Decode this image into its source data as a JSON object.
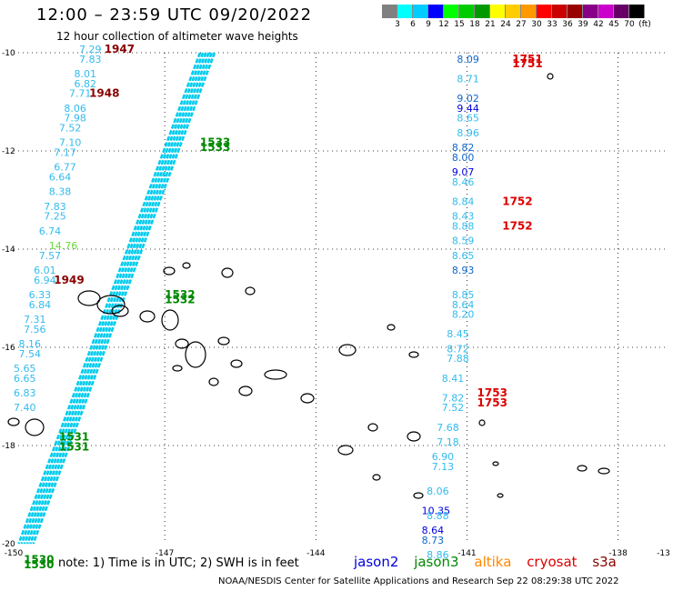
{
  "header": {
    "title": "12:00 – 23:59 UTC 09/20/2022",
    "subtitle": "12 hour collection of altimeter wave heights"
  },
  "colorbar": {
    "colors": [
      "#808080",
      "#00ffff",
      "#00ccff",
      "#0000ff",
      "#00ff00",
      "#00cc00",
      "#009900",
      "#ffff00",
      "#ffcc00",
      "#ff9900",
      "#ff0000",
      "#cc0000",
      "#990000",
      "#880088",
      "#cc00cc",
      "#660066",
      "#000000"
    ],
    "labels": [
      "3",
      "6",
      "9",
      "12",
      "15",
      "18",
      "21",
      "24",
      "27",
      "30",
      "33",
      "36",
      "39",
      "42",
      "45",
      "70",
      "(ft)"
    ]
  },
  "axes": {
    "x_ticks": [
      "-150",
      "-147",
      "-144",
      "-141",
      "-138",
      "-13"
    ],
    "y_ticks": [
      "-10",
      "-12",
      "-14",
      "-16",
      "-18",
      "-20"
    ]
  },
  "colors": {
    "swath": "#00ccee",
    "label_light": "#33bbee",
    "label_dark": "#1166cc",
    "jason2": "#0000dd",
    "jason3": "#008800",
    "altika": "#ff8800",
    "cryosat": "#dd0000",
    "s3a": "#880000",
    "mid_green": "#66dd33"
  },
  "chart_data": {
    "type": "scatter",
    "xlim": [
      -150,
      -137
    ],
    "ylim": [
      -20,
      -10
    ],
    "grid": "dotted",
    "wave_labels": [
      {
        "x": -148.7,
        "y": -10.0,
        "t": "7.29",
        "c": "label_light"
      },
      {
        "x": -148.7,
        "y": -10.2,
        "t": "7.83",
        "c": "label_light"
      },
      {
        "x": -148.8,
        "y": -10.5,
        "t": "8.01",
        "c": "label_light"
      },
      {
        "x": -148.8,
        "y": -10.7,
        "t": "6.82",
        "c": "label_light"
      },
      {
        "x": -148.9,
        "y": -10.9,
        "t": "7.71",
        "c": "label_light"
      },
      {
        "x": -149.0,
        "y": -11.2,
        "t": "8.06",
        "c": "label_light"
      },
      {
        "x": -149.0,
        "y": -11.4,
        "t": "7.98",
        "c": "label_light"
      },
      {
        "x": -149.1,
        "y": -11.6,
        "t": "7.52",
        "c": "label_light"
      },
      {
        "x": -149.1,
        "y": -11.9,
        "t": "7.10",
        "c": "label_light"
      },
      {
        "x": -149.2,
        "y": -12.1,
        "t": "7.17",
        "c": "label_light"
      },
      {
        "x": -149.2,
        "y": -12.4,
        "t": "6.77",
        "c": "label_light"
      },
      {
        "x": -149.3,
        "y": -12.6,
        "t": "6.64",
        "c": "label_light"
      },
      {
        "x": -149.3,
        "y": -12.9,
        "t": "8.38",
        "c": "label_light"
      },
      {
        "x": -149.4,
        "y": -13.2,
        "t": "7.83",
        "c": "label_light"
      },
      {
        "x": -149.4,
        "y": -13.4,
        "t": "7.25",
        "c": "label_light"
      },
      {
        "x": -149.5,
        "y": -13.7,
        "t": "6.74",
        "c": "label_light"
      },
      {
        "x": -149.3,
        "y": -14.0,
        "t": "14.76",
        "c": "mid_green"
      },
      {
        "x": -149.5,
        "y": -14.2,
        "t": "7.57",
        "c": "label_light"
      },
      {
        "x": -149.6,
        "y": -14.5,
        "t": "6.01",
        "c": "label_light"
      },
      {
        "x": -149.6,
        "y": -14.7,
        "t": "6.94",
        "c": "label_light"
      },
      {
        "x": -149.7,
        "y": -15.0,
        "t": "6.33",
        "c": "label_light"
      },
      {
        "x": -149.7,
        "y": -15.2,
        "t": "6.84",
        "c": "label_light"
      },
      {
        "x": -149.8,
        "y": -15.5,
        "t": "7.31",
        "c": "label_light"
      },
      {
        "x": -149.8,
        "y": -15.7,
        "t": "7.56",
        "c": "label_light"
      },
      {
        "x": -149.9,
        "y": -16.0,
        "t": "8.16",
        "c": "label_light"
      },
      {
        "x": -149.9,
        "y": -16.2,
        "t": "7.54",
        "c": "label_light"
      },
      {
        "x": -150.0,
        "y": -16.5,
        "t": "5.65",
        "c": "label_light"
      },
      {
        "x": -150.0,
        "y": -16.7,
        "t": "6.65",
        "c": "label_light"
      },
      {
        "x": -150.0,
        "y": -17.0,
        "t": "6.83",
        "c": "label_light"
      },
      {
        "x": -150.0,
        "y": -17.3,
        "t": "7.40",
        "c": "label_light"
      },
      {
        "x": -141.2,
        "y": -10.2,
        "t": "8.09",
        "c": "label_dark"
      },
      {
        "x": -141.2,
        "y": -10.6,
        "t": "8.71",
        "c": "label_light"
      },
      {
        "x": -141.2,
        "y": -11.0,
        "t": "9.02",
        "c": "label_dark"
      },
      {
        "x": -141.2,
        "y": -11.2,
        "t": "9.44",
        "c": "jason2"
      },
      {
        "x": -141.2,
        "y": -11.4,
        "t": "8.65",
        "c": "label_light"
      },
      {
        "x": -141.2,
        "y": -11.7,
        "t": "8.96",
        "c": "label_light"
      },
      {
        "x": -141.3,
        "y": -12.0,
        "t": "8.82",
        "c": "label_dark"
      },
      {
        "x": -141.3,
        "y": -12.2,
        "t": "8.00",
        "c": "label_dark"
      },
      {
        "x": -141.3,
        "y": -12.5,
        "t": "9.07",
        "c": "jason2"
      },
      {
        "x": -141.3,
        "y": -12.7,
        "t": "8.46",
        "c": "label_light"
      },
      {
        "x": -141.3,
        "y": -13.1,
        "t": "8.84",
        "c": "label_light"
      },
      {
        "x": -141.3,
        "y": -13.4,
        "t": "8.43",
        "c": "label_light"
      },
      {
        "x": -141.3,
        "y": -13.6,
        "t": "8.88",
        "c": "label_light"
      },
      {
        "x": -141.3,
        "y": -13.9,
        "t": "8.59",
        "c": "label_light"
      },
      {
        "x": -141.3,
        "y": -14.2,
        "t": "8.65",
        "c": "label_light"
      },
      {
        "x": -141.3,
        "y": -14.5,
        "t": "8.93",
        "c": "label_dark"
      },
      {
        "x": -141.3,
        "y": -15.0,
        "t": "8.85",
        "c": "label_light"
      },
      {
        "x": -141.3,
        "y": -15.2,
        "t": "8.64",
        "c": "label_light"
      },
      {
        "x": -141.3,
        "y": -15.4,
        "t": "8.20",
        "c": "label_light"
      },
      {
        "x": -141.4,
        "y": -15.8,
        "t": "8.45",
        "c": "label_light"
      },
      {
        "x": -141.4,
        "y": -16.1,
        "t": "8.72",
        "c": "label_light"
      },
      {
        "x": -141.4,
        "y": -16.3,
        "t": "7.88",
        "c": "label_light"
      },
      {
        "x": -141.5,
        "y": -16.7,
        "t": "8.41",
        "c": "label_light"
      },
      {
        "x": -141.5,
        "y": -17.1,
        "t": "7.82",
        "c": "label_light"
      },
      {
        "x": -141.5,
        "y": -17.3,
        "t": "7.52",
        "c": "label_light"
      },
      {
        "x": -141.6,
        "y": -17.7,
        "t": "7.68",
        "c": "label_light"
      },
      {
        "x": -141.6,
        "y": -18.0,
        "t": "7.18",
        "c": "label_light"
      },
      {
        "x": -141.7,
        "y": -18.3,
        "t": "6.90",
        "c": "label_light"
      },
      {
        "x": -141.7,
        "y": -18.5,
        "t": "7.13",
        "c": "label_light"
      },
      {
        "x": -141.8,
        "y": -19.0,
        "t": "8.06",
        "c": "label_light"
      },
      {
        "x": -141.9,
        "y": -19.4,
        "t": "10.35",
        "c": "jason2"
      },
      {
        "x": -141.8,
        "y": -19.5,
        "t": "8.88",
        "c": "label_light"
      },
      {
        "x": -141.9,
        "y": -19.8,
        "t": "8.64",
        "c": "jason2"
      },
      {
        "x": -141.9,
        "y": -20.0,
        "t": "8.73",
        "c": "label_dark"
      },
      {
        "x": -141.8,
        "y": -20.3,
        "t": "8.86",
        "c": "label_light"
      }
    ],
    "time_labels": [
      {
        "x": -148.2,
        "y": -10.0,
        "t": "1947",
        "c": "s3a"
      },
      {
        "x": -148.5,
        "y": -10.9,
        "t": "1948",
        "c": "s3a"
      },
      {
        "x": -149.2,
        "y": -14.7,
        "t": "1949",
        "c": "s3a"
      },
      {
        "x": -146.3,
        "y": -11.9,
        "t": "1533",
        "c": "jason3"
      },
      {
        "x": -146.3,
        "y": -12.0,
        "t": "1533",
        "c": "jason3"
      },
      {
        "x": -147.0,
        "y": -15.0,
        "t": "1532",
        "c": "jason3"
      },
      {
        "x": -147.0,
        "y": -15.1,
        "t": "1532",
        "c": "jason3"
      },
      {
        "x": -149.1,
        "y": -17.9,
        "t": "1531",
        "c": "jason3"
      },
      {
        "x": -149.1,
        "y": -18.1,
        "t": "1531",
        "c": "jason3"
      },
      {
        "x": -149.8,
        "y": -20.4,
        "t": "1530",
        "c": "jason3"
      },
      {
        "x": -149.8,
        "y": -20.5,
        "t": "1530",
        "c": "jason3"
      },
      {
        "x": -140.1,
        "y": -10.2,
        "t": "1751",
        "c": "cryosat"
      },
      {
        "x": -140.1,
        "y": -10.3,
        "t": "1751",
        "c": "cryosat"
      },
      {
        "x": -140.3,
        "y": -13.1,
        "t": "1752",
        "c": "cryosat"
      },
      {
        "x": -140.3,
        "y": -13.6,
        "t": "1752",
        "c": "cryosat"
      },
      {
        "x": -140.8,
        "y": -17.0,
        "t": "1753",
        "c": "cryosat"
      },
      {
        "x": -140.8,
        "y": -17.2,
        "t": "1753",
        "c": "cryosat"
      }
    ]
  },
  "footer": {
    "note": "note:  1) Time is in UTC;  2) SWH is in feet",
    "legend": [
      "jason2",
      "jason3",
      "altika",
      "cryosat",
      "s3a"
    ],
    "credit": "NOAA/NESDIS Center for Satellite Applications and Research     Sep 22 08:29:38 UTC 2022"
  }
}
